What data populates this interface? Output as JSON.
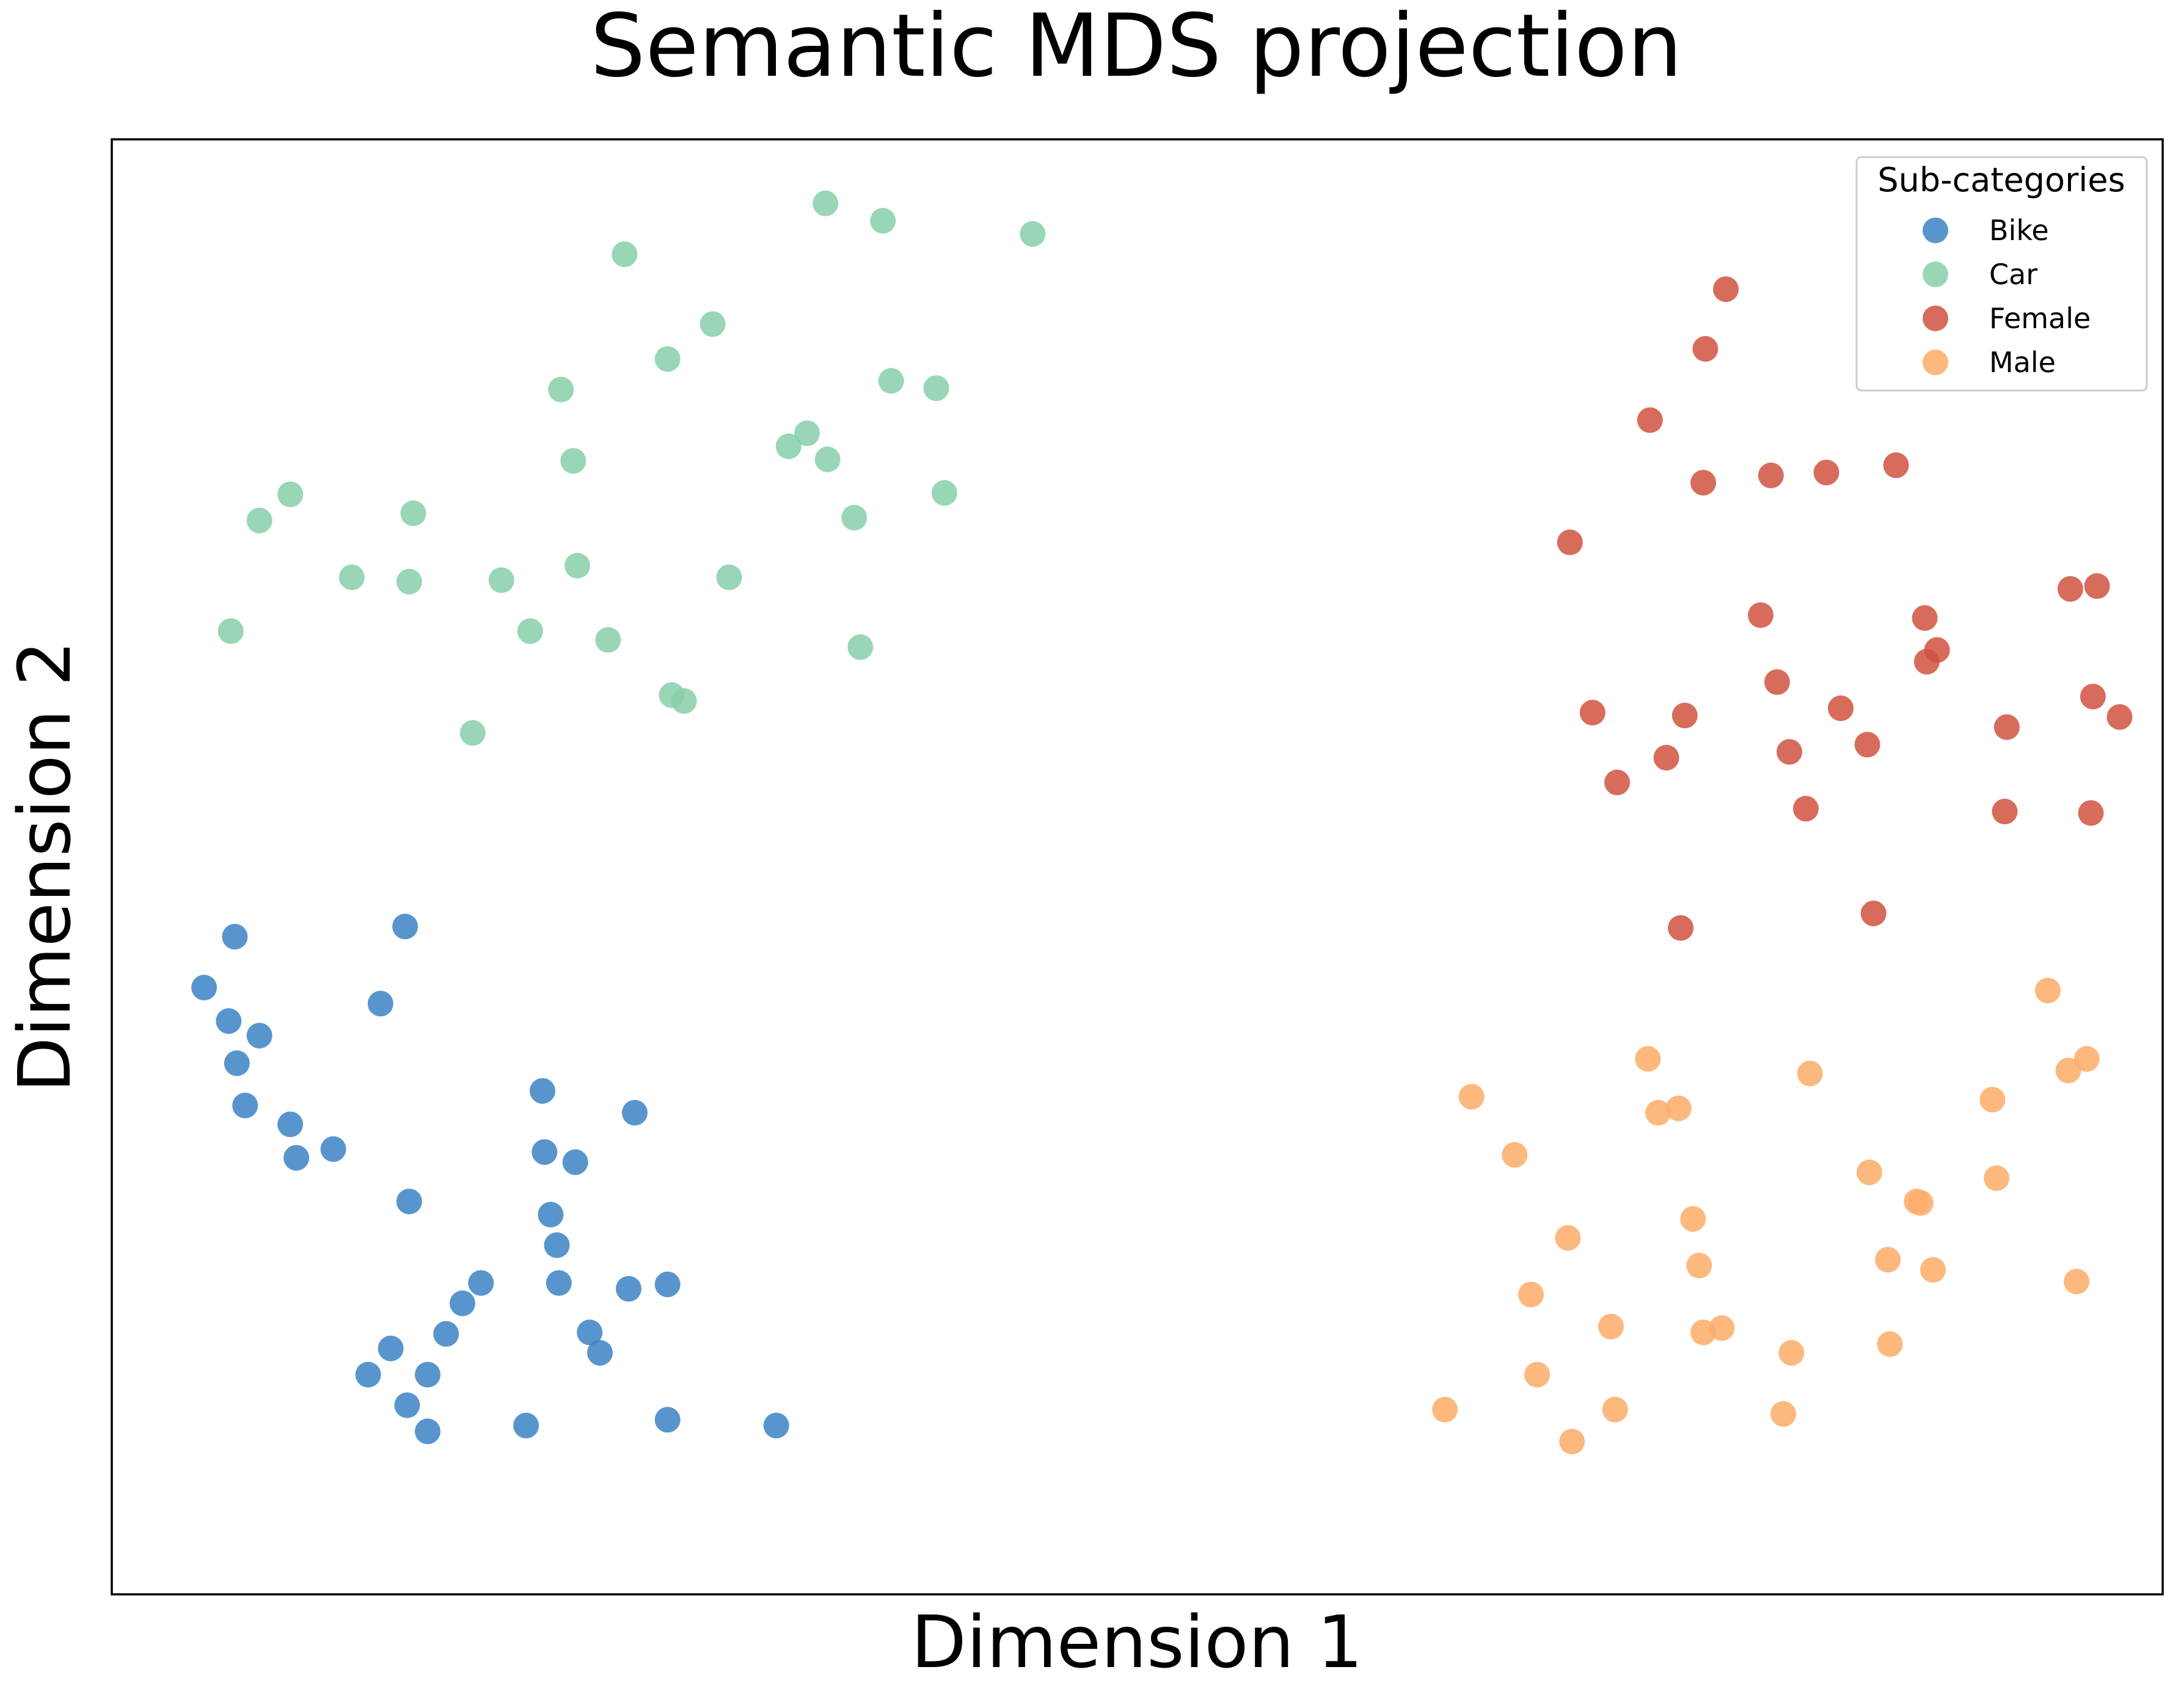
{
  "chart_data": {
    "type": "scatter",
    "title": "Semantic MDS projection",
    "xlabel": "Dimension 1",
    "ylabel": "Dimension 2",
    "xlim": [
      0,
      1000
    ],
    "ylim": [
      0,
      1000
    ],
    "ticks": "hidden",
    "grid": false,
    "legend": {
      "title": "Sub-categories",
      "placement": "top-right",
      "entries": [
        "Bike",
        "Car",
        "Female",
        "Male"
      ]
    },
    "series": [
      {
        "name": "Bike",
        "color": "#3b82c4",
        "x": [
          45,
          60,
          57,
          72,
          61,
          65,
          87,
          108,
          90,
          131,
          143,
          145,
          136,
          171,
          180,
          154,
          125,
          144,
          163,
          233,
          218,
          214,
          217,
          211,
          210,
          226,
          255,
          238,
          252,
          271,
          202,
          154,
          271,
          324
        ],
        "y": [
          417,
          452,
          394,
          384,
          365,
          336,
          323,
          306,
          300,
          406,
          459,
          270,
          169,
          200,
          214,
          151,
          151,
          130,
          179,
          180,
          214,
          261,
          240,
          304,
          346,
          297,
          331,
          166,
          210,
          213,
          116,
          112,
          120,
          116
        ]
      },
      {
        "name": "Car",
        "color": "#86cfa9",
        "x": [
          58,
          72,
          87,
          117,
          145,
          147,
          176,
          190,
          204,
          227,
          219,
          225,
          242,
          250,
          271,
          273,
          279,
          293,
          301,
          330,
          339,
          348,
          349,
          362,
          365,
          376,
          380,
          406,
          402,
          449
        ],
        "y": [
          662,
          738,
          756,
          699,
          696,
          743,
          592,
          697,
          662,
          707,
          828,
          779,
          656,
          921,
          849,
          618,
          614,
          873,
          699,
          789,
          798,
          956,
          780,
          740,
          651,
          944,
          834,
          757,
          829,
          935
        ]
      },
      {
        "name": "Female",
        "color": "#d0523f",
        "x": [
          711,
          722,
          734,
          750,
          758,
          765,
          767,
          776,
          777,
          787,
          804,
          809,
          812,
          818,
          826,
          836,
          843,
          856,
          859,
          870,
          884,
          885,
          890,
          923,
          924,
          955,
          965,
          968,
          979,
          966
        ],
        "y": [
          723,
          606,
          558,
          807,
          575,
          458,
          604,
          764,
          856,
          897,
          673,
          769,
          627,
          579,
          540,
          771,
          609,
          584,
          468,
          776,
          671,
          641,
          649,
          538,
          596,
          691,
          537,
          693,
          603,
          617
        ]
      },
      {
        "name": "Male",
        "color": "#fdab67",
        "x": [
          650,
          663,
          684,
          692,
          695,
          710,
          712,
          731,
          733,
          749,
          754,
          764,
          771,
          774,
          776,
          785,
          815,
          819,
          828,
          857,
          866,
          867,
          880,
          882,
          888,
          917,
          919,
          944,
          954,
          958,
          963
        ],
        "y": [
          127,
          342,
          302,
          206,
          151,
          245,
          105,
          184,
          127,
          368,
          331,
          334,
          258,
          226,
          180,
          183,
          124,
          166,
          358,
          290,
          230,
          172,
          270,
          269,
          223,
          340,
          286,
          415,
          360,
          215,
          368
        ]
      }
    ]
  }
}
